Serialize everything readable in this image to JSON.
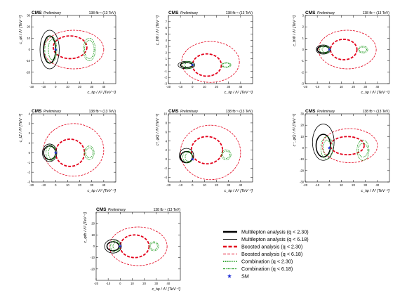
{
  "header": {
    "experiment": "CMS",
    "status": "Preliminary",
    "lumi_texts": [
      "138 fb⁻¹ (13 TeV)",
      "138 fb⁻¹ (13 TeV)",
      "138 fb⁻¹ (13 TeV)",
      "138 fb⁻¹ (13 TeV)",
      "138 fb⁻¹ (13 TeV)",
      "138 fb⁻¹ (13 TeV)",
      "138 fb⁻¹ (13 TeV)"
    ]
  },
  "legend": {
    "items": [
      {
        "label": "Multilepton analysis (q < 2.30)",
        "style": "solid-thick",
        "color": "#000000"
      },
      {
        "label": "Multilepton analysis (q < 6.18)",
        "style": "solid-thin",
        "color": "#000000"
      },
      {
        "label": "Boosted analysis (q < 2.30)",
        "style": "dashed-thick",
        "color": "#e3001b"
      },
      {
        "label": "Boosted analysis (q < 6.18)",
        "style": "dashed-thin",
        "color": "#e3001b"
      },
      {
        "label": "Combination (q < 2.30)",
        "style": "dotted-thick",
        "color": "#1a9a1a"
      },
      {
        "label": "Combination (q < 6.18)",
        "style": "dashdot-thin",
        "color": "#1a9a1a"
      },
      {
        "label": "SM",
        "style": "star",
        "color": "#1f2fd6"
      }
    ]
  },
  "colors": {
    "multilepton": "#000000",
    "boosted": "#e3001b",
    "combination": "#1a9a1a",
    "sm": "#1f2fd6"
  },
  "chart_data": [
    {
      "type": "scatter",
      "xlabel": "c_tφ / Λ² [TeV⁻²]",
      "ylabel": "c_φt / Λ² [TeV⁻²]",
      "xlim": [
        -20,
        50
      ],
      "ylim": [
        -30,
        30
      ],
      "xticks": [
        -20,
        -10,
        0,
        10,
        20,
        30,
        40
      ],
      "yticks": [
        -20,
        -10,
        0,
        10,
        20,
        30
      ],
      "sm": [
        0,
        0
      ],
      "contours": {
        "multi68": [
          [
            -5,
            0,
            5,
            12
          ]
        ],
        "multi95": [
          [
            -5,
            0,
            8,
            17
          ]
        ],
        "boost68": [
          [
            12,
            2,
            14,
            10
          ]
        ],
        "boost95": [
          [
            15,
            0,
            25,
            17
          ]
        ],
        "comb68": [
          [
            -3,
            0,
            3,
            9
          ],
          [
            28,
            0,
            4,
            8
          ]
        ],
        "comb95": [
          [
            -4,
            0,
            5,
            12
          ],
          [
            28,
            0,
            5,
            10
          ]
        ]
      }
    },
    {
      "type": "scatter",
      "xlabel": "c_tφ / Λ² [TeV⁻²]",
      "ylabel": "c_tW / Λ² [TeV⁻²]",
      "xlim": [
        -20,
        50
      ],
      "ylim": [
        -3,
        8
      ],
      "xticks": [
        -20,
        -10,
        0,
        10,
        20,
        30,
        40
      ],
      "yticks": [
        -3,
        -2,
        -1,
        0,
        1,
        2,
        3,
        4,
        5,
        6,
        7
      ],
      "sm": [
        0,
        0
      ],
      "contours": {
        "multi68": [
          [
            -5,
            0,
            5,
            0.4
          ]
        ],
        "multi95": [
          [
            -5,
            0,
            7,
            0.6
          ]
        ],
        "boost68": [
          [
            12,
            0,
            12,
            1.8
          ]
        ],
        "boost95": [
          [
            15,
            0.5,
            24,
            3.3
          ]
        ],
        "comb68": [
          [
            -3,
            0,
            3.5,
            0.4
          ],
          [
            28,
            0,
            3,
            0.3
          ]
        ],
        "comb95": [
          [
            -4,
            0,
            5,
            0.6
          ],
          [
            28,
            0,
            4,
            0.4
          ]
        ]
      }
    },
    {
      "type": "scatter",
      "xlabel": "c_tφ / Λ² [TeV⁻²]",
      "ylabel": "c_bW / Λ² [TeV⁻²]",
      "xlim": [
        -20,
        50
      ],
      "ylim": [
        -3,
        3
      ],
      "xticks": [
        -20,
        -10,
        0,
        10,
        20,
        30,
        40
      ],
      "yticks": [
        -3,
        -2,
        -1,
        0,
        1,
        2,
        3
      ],
      "sm": [
        0,
        0
      ],
      "contours": {
        "multi68": [
          [
            -5,
            0,
            5,
            0.3
          ]
        ],
        "multi95": [
          [
            -5,
            0,
            6,
            0.4
          ]
        ],
        "boost68": [
          [
            12,
            0,
            11,
            0.9
          ]
        ],
        "boost95": [
          [
            15,
            0,
            24,
            1.7
          ]
        ],
        "comb68": [
          [
            -3,
            0,
            3,
            0.25
          ],
          [
            28,
            0,
            3,
            0.22
          ]
        ],
        "comb95": [
          [
            -4,
            0,
            4,
            0.35
          ],
          [
            28,
            0,
            4,
            0.3
          ]
        ]
      }
    },
    {
      "type": "scatter",
      "xlabel": "c_tφ / Λ² [TeV⁻²]",
      "ylabel": "c_tZ / Λ² [TeV⁻²]",
      "xlim": [
        -20,
        50
      ],
      "ylim": [
        -3,
        4
      ],
      "xticks": [
        -20,
        -10,
        0,
        10,
        20,
        30,
        40
      ],
      "yticks": [
        -3,
        -2,
        -1,
        0,
        1,
        2,
        3,
        4
      ],
      "sm": [
        0,
        0
      ],
      "contours": {
        "multi68": [
          [
            -5,
            0,
            5,
            0.7
          ]
        ],
        "multi95": [
          [
            -5,
            0,
            6,
            0.9
          ]
        ],
        "boost68": [
          [
            12,
            0,
            12,
            1.4
          ]
        ],
        "boost95": [
          [
            15,
            0.3,
            25,
            2.7
          ]
        ],
        "comb68": [
          [
            -3,
            0,
            3,
            0.6
          ],
          [
            28,
            0,
            3,
            0.5
          ]
        ],
        "comb95": [
          [
            -4,
            0,
            4,
            0.8
          ],
          [
            28,
            0,
            4,
            0.7
          ]
        ]
      }
    },
    {
      "type": "scatter",
      "xlabel": "c_tφ / Λ² [TeV⁻²]",
      "ylabel": "c³_φQ / Λ² [TeV⁻²]",
      "xlim": [
        -20,
        50
      ],
      "ylim": [
        -5,
        10
      ],
      "xticks": [
        -20,
        -10,
        0,
        10,
        20,
        30,
        40
      ],
      "yticks": [
        -4,
        -2,
        0,
        2,
        4,
        6,
        8,
        10
      ],
      "sm": [
        0,
        0
      ],
      "contours": {
        "multi68": [
          [
            -5,
            0.5,
            5,
            1.2
          ]
        ],
        "multi95": [
          [
            -5,
            0.8,
            6,
            1.6
          ]
        ],
        "boost68": [
          [
            12,
            2,
            13,
            3
          ]
        ],
        "boost95": [
          [
            15,
            1.5,
            25,
            6
          ]
        ],
        "comb68": [
          [
            -3,
            0.5,
            3,
            1
          ],
          [
            28,
            1,
            3,
            0.8
          ]
        ],
        "comb95": [
          [
            -4,
            0.5,
            4,
            1.3
          ],
          [
            28,
            1,
            4,
            1.1
          ]
        ]
      }
    },
    {
      "type": "scatter",
      "xlabel": "c_tφ / Λ² [TeV⁻²]",
      "ylabel": "c⁻_φQ / Λ² [TeV⁻²]",
      "xlim": [
        -20,
        50
      ],
      "ylim": [
        -30,
        30
      ],
      "xticks": [
        -20,
        -10,
        0,
        10,
        20,
        30,
        40
      ],
      "yticks": [
        -30,
        -20,
        -10,
        0,
        10,
        20,
        30
      ],
      "sm": [
        0,
        0
      ],
      "contours": {
        "multi68": [
          [
            -5,
            2,
            6,
            10
          ]
        ],
        "multi95": [
          [
            -5,
            5,
            9,
            16
          ]
        ],
        "boost68": [
          [
            15,
            2,
            14,
            8
          ]
        ],
        "boost95": [
          [
            17,
            2,
            23,
            15
          ]
        ],
        "comb68": [
          [
            -2,
            0,
            3,
            7
          ],
          [
            28,
            -2,
            4,
            6
          ]
        ],
        "comb95": [
          [
            -2,
            0,
            5,
            10
          ],
          [
            28,
            -2,
            5,
            9
          ]
        ]
      }
    },
    {
      "type": "scatter",
      "xlabel": "c_tφ / Λ² [TeV⁻²]",
      "ylabel": "c_φtb / Λ² [TeV⁻²]",
      "xlim": [
        -20,
        50
      ],
      "ylim": [
        -30,
        30
      ],
      "xticks": [
        -20,
        -10,
        0,
        10,
        20,
        30,
        40
      ],
      "yticks": [
        -20,
        -10,
        0,
        10,
        20
      ],
      "sm": [
        0,
        0
      ],
      "contours": {
        "multi68": [
          [
            -6,
            0,
            5,
            4
          ]
        ],
        "multi95": [
          [
            -6,
            0,
            7,
            6
          ]
        ],
        "boost68": [
          [
            12,
            0,
            12,
            10
          ]
        ],
        "boost95": [
          [
            15,
            0,
            24,
            17
          ]
        ],
        "comb68": [
          [
            -3,
            0,
            3,
            3.5
          ],
          [
            28,
            0,
            3,
            3
          ]
        ],
        "comb95": [
          [
            -4,
            0,
            4,
            5
          ],
          [
            28,
            0,
            4,
            4
          ]
        ]
      }
    }
  ]
}
